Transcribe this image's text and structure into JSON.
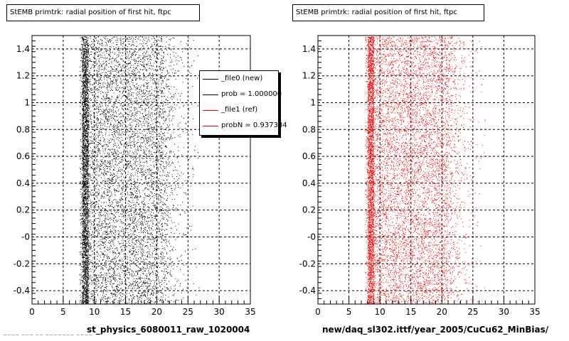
{
  "footer": "~~~~ ~~~ ~~ ~~~~~~~ ~~~~",
  "legend": {
    "entries": [
      {
        "label": "_file0 (new)",
        "color": "#000000"
      },
      {
        "label": "prob = 1.000000",
        "color": "#000000"
      },
      {
        "label": "_file1 (ref)",
        "color": "#ff0000"
      },
      {
        "label": "probN = 0.937384",
        "color": "#ff0000"
      }
    ]
  },
  "chart_data": [
    {
      "type": "scatter",
      "title": "StEMB primtrk: radial position of first hit, ftpc",
      "xlabel": "st_physics_6080011_raw_1020004",
      "ylabel": "",
      "xlim": [
        0,
        35
      ],
      "ylim": [
        -0.5,
        1.5
      ],
      "xticks": [
        0,
        5,
        10,
        15,
        20,
        25,
        30,
        35
      ],
      "xtick_labels": [
        "0",
        "5",
        "10",
        "15",
        "20",
        "25",
        "30",
        "35"
      ],
      "yticks": [
        -0.4,
        -0.2,
        0,
        0.2,
        0.4,
        0.6,
        0.8,
        1,
        1.2,
        1.4
      ],
      "ytick_labels": [
        "-0.4",
        "-0.2",
        "-0",
        "0.2",
        "0.4",
        "0.6",
        "0.8",
        "1",
        "1.2",
        "1.4"
      ],
      "grid": true,
      "legend_position": "top-right",
      "series": [
        {
          "name": "_file0 (new)",
          "color": "#000000",
          "x_range": [
            7,
            27
          ],
          "dense_band": [
            8,
            9
          ],
          "falloff_start": 21
        }
      ]
    },
    {
      "type": "scatter",
      "title": "StEMB primtrk: radial position of first hit, ftpc",
      "xlabel": "new/daq_sl302.ittf/year_2005/CuCu62_MinBias/",
      "ylabel": "",
      "xlim": [
        0,
        35
      ],
      "ylim": [
        -0.5,
        1.5
      ],
      "xticks": [
        0,
        5,
        10,
        15,
        20,
        25,
        30,
        35
      ],
      "xtick_labels": [
        "0",
        "5",
        "10",
        "15",
        "20",
        "25",
        "30",
        "35"
      ],
      "yticks": [
        -0.4,
        -0.2,
        0,
        0.2,
        0.4,
        0.6,
        0.8,
        1,
        1.2,
        1.4
      ],
      "ytick_labels": [
        "-0.4",
        "-0.2",
        "-0",
        "0.2",
        "0.4",
        "0.6",
        "0.8",
        "1",
        "1.2",
        "1.4"
      ],
      "grid": true,
      "series": [
        {
          "name": "_file1 (ref)",
          "color": "#ff0000",
          "x_range": [
            7,
            27
          ],
          "dense_band": [
            8,
            9
          ],
          "falloff_start": 21
        }
      ]
    }
  ]
}
